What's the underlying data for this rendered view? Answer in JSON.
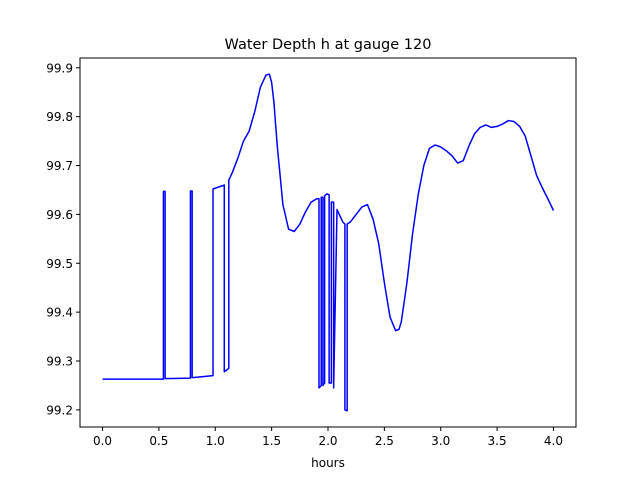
{
  "chart_data": {
    "type": "line",
    "title": "Water Depth h at gauge 120",
    "xlabel": "hours",
    "ylabel": "",
    "xlim": [
      -0.2,
      4.2
    ],
    "ylim": [
      99.165,
      99.92
    ],
    "xticks": [
      0.0,
      0.5,
      1.0,
      1.5,
      2.0,
      2.5,
      3.0,
      3.5,
      4.0
    ],
    "xtick_labels": [
      "0.0",
      "0.5",
      "1.0",
      "1.5",
      "2.0",
      "2.5",
      "3.0",
      "3.5",
      "4.0"
    ],
    "yticks": [
      99.2,
      99.3,
      99.4,
      99.5,
      99.6,
      99.7,
      99.8,
      99.9
    ],
    "ytick_labels": [
      "99.2",
      "99.3",
      "99.4",
      "99.5",
      "99.6",
      "99.7",
      "99.8",
      "99.9"
    ],
    "grid": false,
    "line_color": "#0000ff",
    "series": [
      {
        "x": [
          0.0,
          0.54,
          0.54,
          0.555,
          0.555,
          0.56,
          0.78,
          0.78,
          0.795,
          0.795,
          0.8,
          0.98,
          0.98,
          1.08,
          1.08,
          1.12,
          1.12,
          1.15,
          1.2,
          1.25,
          1.3,
          1.35,
          1.4,
          1.45,
          1.48,
          1.5,
          1.52,
          1.55,
          1.6,
          1.65,
          1.7,
          1.75,
          1.8,
          1.85,
          1.9,
          1.92,
          1.92,
          1.94,
          1.94,
          1.955,
          1.955,
          1.97,
          1.97,
          1.99,
          2.01,
          2.01,
          2.03,
          2.03,
          2.05,
          2.05,
          2.08,
          2.1,
          2.13,
          2.15,
          2.15,
          2.17,
          2.17,
          2.2,
          2.25,
          2.3,
          2.35,
          2.4,
          2.45,
          2.5,
          2.55,
          2.6,
          2.63,
          2.65,
          2.7,
          2.75,
          2.8,
          2.85,
          2.9,
          2.95,
          3.0,
          3.05,
          3.1,
          3.15,
          3.2,
          3.25,
          3.3,
          3.35,
          3.4,
          3.45,
          3.5,
          3.55,
          3.6,
          3.65,
          3.7,
          3.75,
          3.8,
          3.85,
          3.9,
          3.95,
          4.0
        ],
        "y": [
          99.263,
          99.263,
          99.647,
          99.647,
          99.264,
          99.264,
          99.265,
          99.648,
          99.648,
          99.266,
          99.266,
          99.27,
          99.652,
          99.66,
          99.278,
          99.285,
          99.67,
          99.685,
          99.715,
          99.75,
          99.77,
          99.81,
          99.86,
          99.885,
          99.887,
          99.87,
          99.83,
          99.74,
          99.62,
          99.57,
          99.565,
          99.58,
          99.605,
          99.625,
          99.632,
          99.632,
          99.245,
          99.25,
          99.635,
          99.635,
          99.25,
          99.255,
          99.638,
          99.642,
          99.64,
          99.255,
          99.255,
          99.625,
          99.625,
          99.245,
          99.61,
          99.6,
          99.585,
          99.58,
          99.2,
          99.198,
          99.58,
          99.585,
          99.6,
          99.615,
          99.62,
          99.59,
          99.54,
          99.46,
          99.39,
          99.362,
          99.365,
          99.38,
          99.46,
          99.56,
          99.64,
          99.7,
          99.735,
          99.742,
          99.738,
          99.73,
          99.72,
          99.705,
          99.71,
          99.74,
          99.765,
          99.778,
          99.783,
          99.778,
          99.78,
          99.785,
          99.792,
          99.79,
          99.78,
          99.76,
          99.72,
          99.68,
          99.655,
          99.632,
          99.608
        ]
      }
    ]
  }
}
